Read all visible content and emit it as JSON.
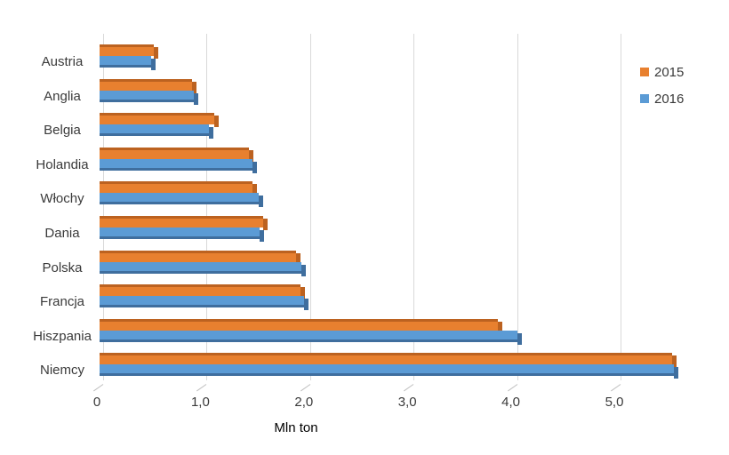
{
  "chart_data": {
    "type": "bar",
    "orientation": "horizontal",
    "xlabel": "Mln ton",
    "categories": [
      "Austria",
      "Anglia",
      "Belgia",
      "Holandia",
      "Włochy",
      "Dania",
      "Polska",
      "Francja",
      "Hiszpania",
      "Niemcy"
    ],
    "series": [
      {
        "name": "2015",
        "color": "#E8802F",
        "edge_color": "#BC6220",
        "values": [
          0.52,
          0.89,
          1.11,
          1.44,
          1.48,
          1.58,
          1.9,
          1.94,
          3.85,
          5.53
        ]
      },
      {
        "name": "2016",
        "color": "#5B9BD5",
        "edge_color": "#3F6E9E",
        "values": [
          0.5,
          0.91,
          1.06,
          1.48,
          1.54,
          1.55,
          1.95,
          1.98,
          4.04,
          5.55
        ]
      }
    ],
    "xlim": [
      0,
      5.5
    ],
    "xticks": [
      {
        "value": 0,
        "label": "0"
      },
      {
        "value": 1,
        "label": "1,0"
      },
      {
        "value": 2,
        "label": "2,0"
      },
      {
        "value": 3,
        "label": "3,0"
      },
      {
        "value": 4,
        "label": "4,0"
      },
      {
        "value": 5,
        "label": "5,0"
      }
    ],
    "grid": true,
    "gridline_color": "#D9D9D9",
    "tick_color": "#BFBFBF",
    "text_color": "#3A3A3A",
    "legend": {
      "position": "top-right",
      "items": [
        {
          "label": "2015",
          "color": "#E8802F"
        },
        {
          "label": "2016",
          "color": "#5B9BD5"
        }
      ]
    }
  }
}
